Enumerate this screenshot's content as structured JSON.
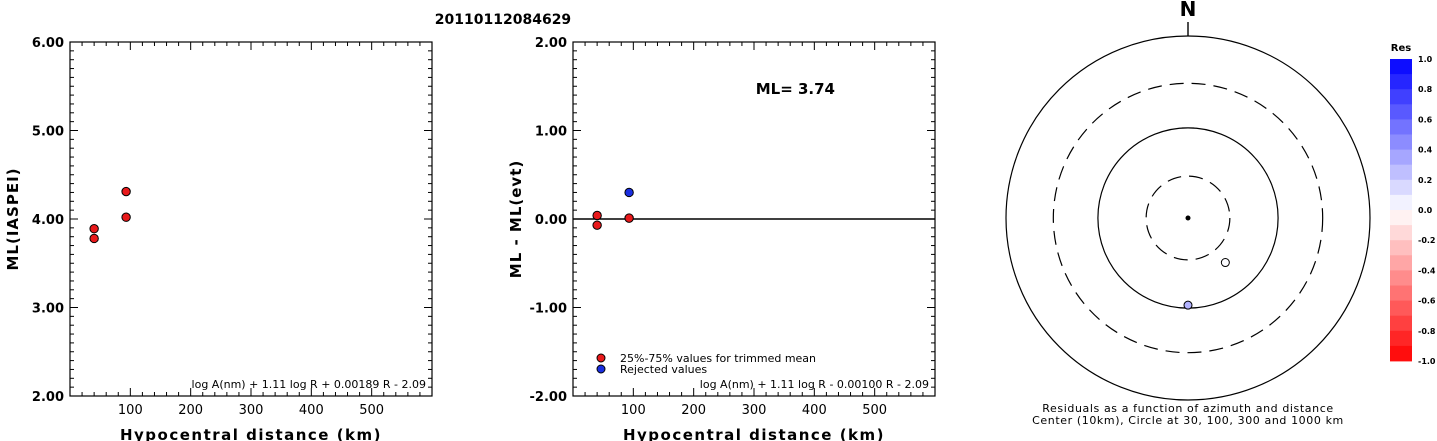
{
  "figure": {
    "title": "20110112084629"
  },
  "chart_data": [
    {
      "type": "scatter",
      "xlabel": "Hypocentral distance (km)",
      "ylabel": "ML(IASPEI)",
      "xlim": [
        0,
        600
      ],
      "ylim": [
        2.0,
        6.0
      ],
      "x_ticks": [
        "100",
        "200",
        "300",
        "400",
        "500"
      ],
      "y_ticks": [
        "2.00",
        "3.00",
        "4.00",
        "5.00",
        "6.00"
      ],
      "formula": "log A(nm) + 1.11 log R + 0.00189 R - 2.09",
      "series": [
        {
          "color": "#e8191b",
          "points": [
            {
              "x": 40,
              "y": 3.89
            },
            {
              "x": 40,
              "y": 3.78
            },
            {
              "x": 93,
              "y": 4.31
            },
            {
              "x": 93,
              "y": 4.02
            }
          ]
        }
      ]
    },
    {
      "type": "scatter",
      "xlabel": "Hypocentral distance (km)",
      "ylabel": "ML - ML(evt)",
      "xlim": [
        0,
        600
      ],
      "ylim": [
        -2.0,
        2.0
      ],
      "x_ticks": [
        "100",
        "200",
        "300",
        "400",
        "500"
      ],
      "y_ticks": [
        "-2.00",
        "-1.00",
        "0.00",
        "1.00",
        "2.00"
      ],
      "zero_line": 0,
      "annotation": "ML= 3.74",
      "formula": "log A(nm) + 1.11 log R - 0.00100 R - 2.09",
      "legend": [
        {
          "label": "25%-75% values for trimmed mean",
          "color": "#e8191b"
        },
        {
          "label": "Rejected values",
          "color": "#1a2ee0"
        }
      ],
      "series": [
        {
          "name": "25%-75% values for trimmed mean",
          "color": "#e8191b",
          "points": [
            {
              "x": 40,
              "y": 0.04
            },
            {
              "x": 40,
              "y": -0.07
            },
            {
              "x": 93,
              "y": 0.01
            }
          ]
        },
        {
          "name": "Rejected values",
          "color": "#1a2ee0",
          "points": [
            {
              "x": 93,
              "y": 0.3
            }
          ]
        }
      ]
    },
    {
      "type": "scatter",
      "north_label": "N",
      "caption_line1": "Residuals as a function of azimuth and distance",
      "caption_line2": "Center (10km), Circle at 30, 100, 300 and 1000 km",
      "rings_km": [
        30,
        100,
        300,
        1000
      ],
      "ring_styles": [
        "dashed",
        "solid",
        "dashed",
        "solid"
      ],
      "center_km": 10,
      "stations": [
        {
          "azimuth_deg": 140,
          "distance_km": 45,
          "residual": 0.01
        },
        {
          "azimuth_deg": 180,
          "distance_km": 93,
          "residual": 0.3
        }
      ],
      "colorbar": {
        "title": "Res",
        "ticks": [
          "1.0",
          "0.8",
          "0.6",
          "0.4",
          "0.2",
          "0.0",
          "-0.2",
          "-0.4",
          "-0.6",
          "-0.8",
          "-1.0"
        ],
        "range": [
          -1.0,
          1.0
        ],
        "positive_color": "#0000ff",
        "negative_color": "#ff0000"
      }
    }
  ]
}
